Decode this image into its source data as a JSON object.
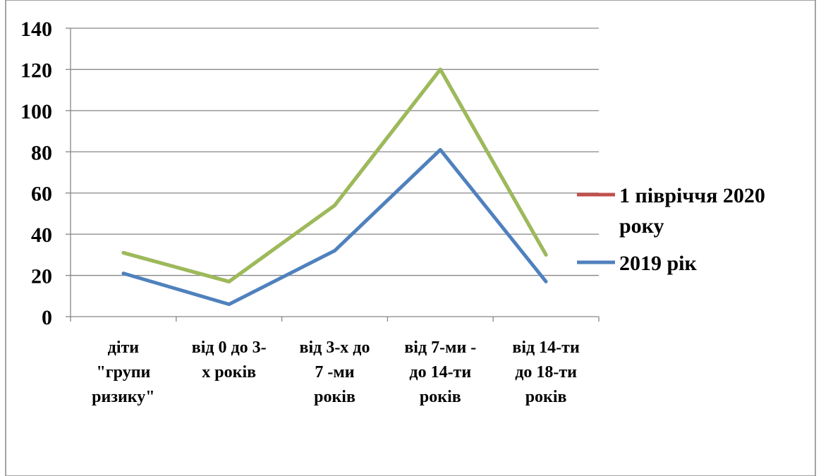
{
  "chart_data": {
    "type": "line",
    "title": "",
    "categories": [
      [
        "діти",
        "\"групи",
        "ризику\""
      ],
      [
        "від 0 до 3-",
        "х років"
      ],
      [
        "від 3-х до",
        "7 -ми",
        "років"
      ],
      [
        "від 7-ми -",
        "до 14-ти",
        "років"
      ],
      [
        "від 14-ти",
        "до 18-ти",
        "років"
      ]
    ],
    "ylim": [
      0,
      140
    ],
    "yticks": [
      "0",
      "20",
      "40",
      "60",
      "80",
      "100",
      "120",
      "140"
    ],
    "grid": true,
    "legend_position": "right",
    "series": [
      {
        "name": "1 півріччя 2020 року",
        "legend_lines": [
          "1 півріччя 2020",
          "року"
        ],
        "color": "#c0504d",
        "values": [
          31,
          17,
          54,
          120,
          30
        ]
      },
      {
        "name": "2019 рік",
        "legend_lines": [
          "2019 рік"
        ],
        "color": "#4f81bd",
        "values": [
          21,
          6,
          32,
          81,
          17
        ]
      },
      {
        "color": "#9bbb59",
        "values": [
          31,
          17,
          54,
          120,
          30
        ]
      }
    ]
  }
}
